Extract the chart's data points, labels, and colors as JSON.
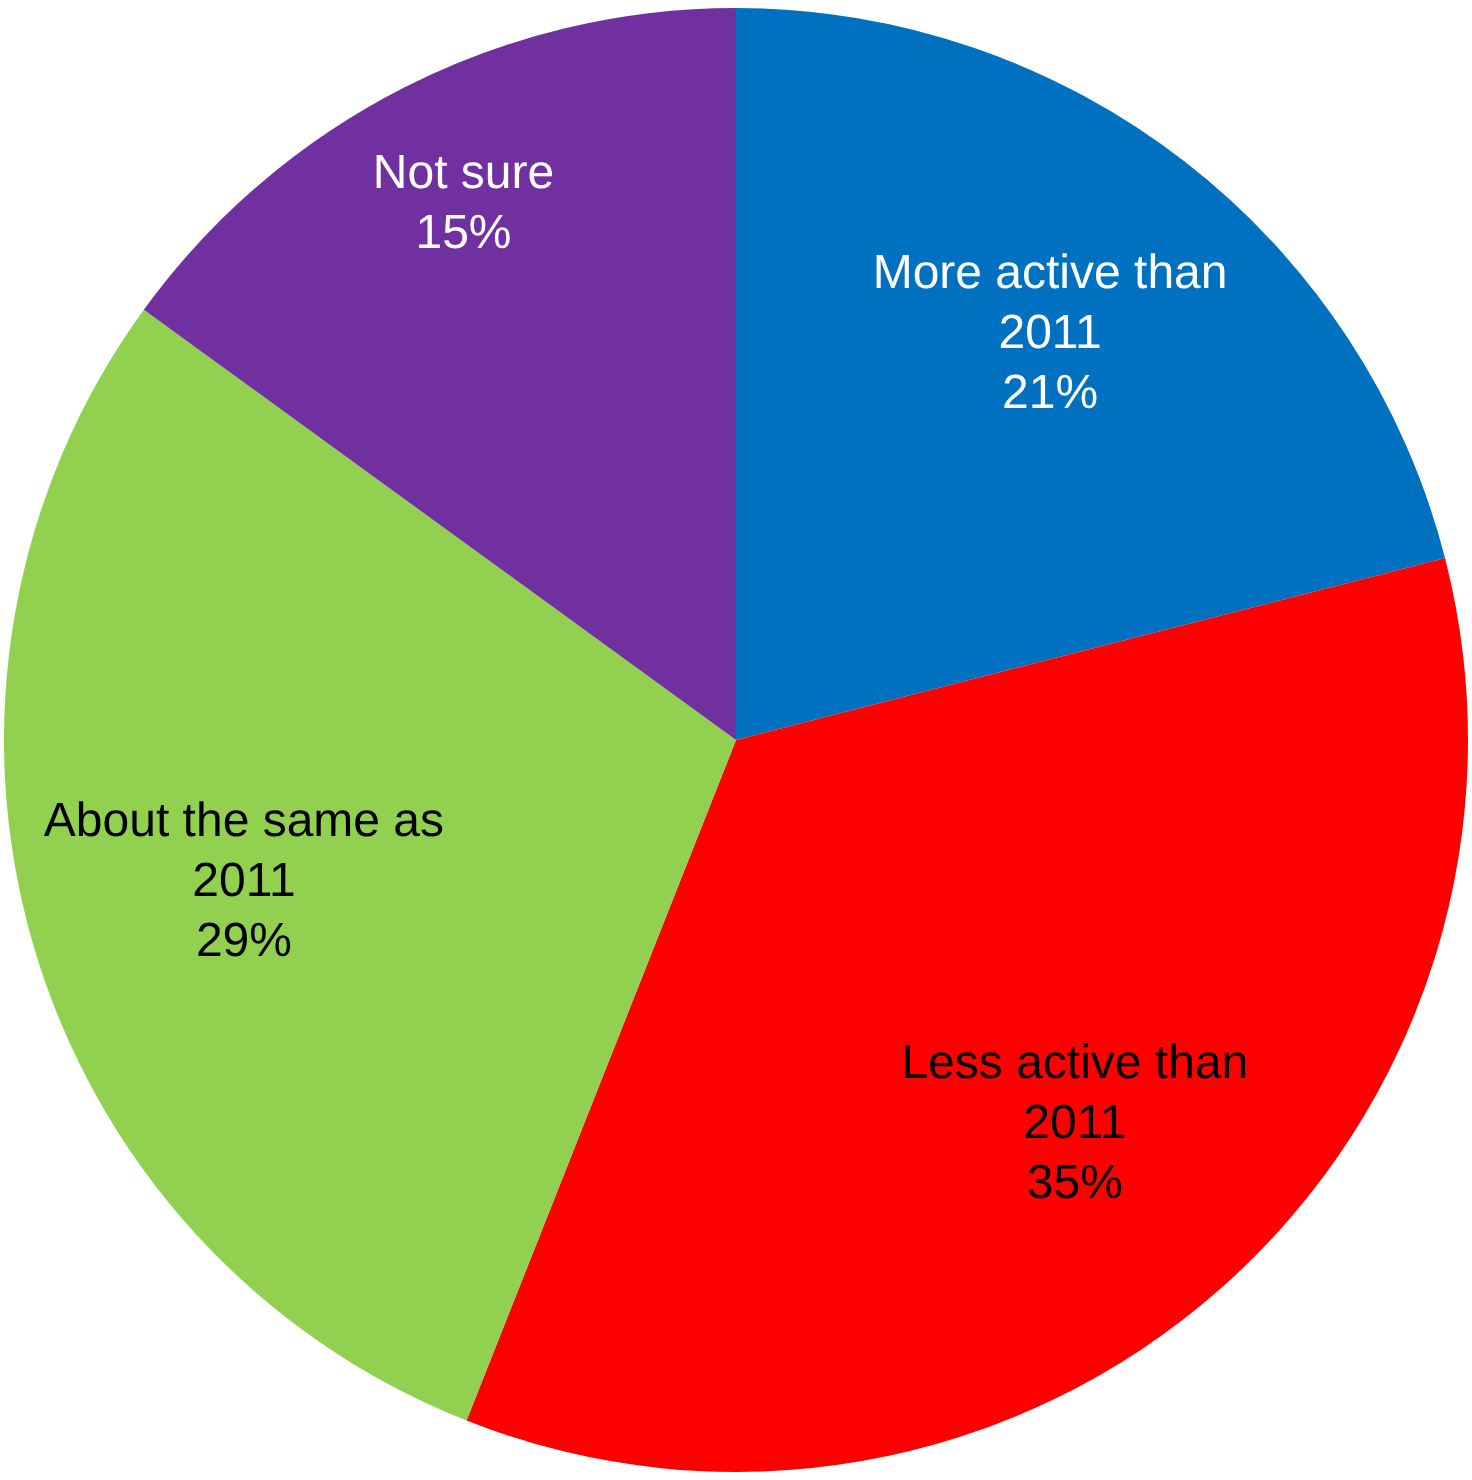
{
  "chart_data": {
    "type": "pie",
    "categories": [
      "More active than\n2011",
      "Less active than\n2011",
      "About the same as\n2011",
      "Not sure"
    ],
    "values": [
      21,
      35,
      29,
      15
    ],
    "colors": [
      "#0070c0",
      "#ff0000",
      "#92d050",
      "#7030a0"
    ],
    "value_labels": [
      "21%",
      "35%",
      "29%",
      "15%"
    ],
    "legend": false
  }
}
